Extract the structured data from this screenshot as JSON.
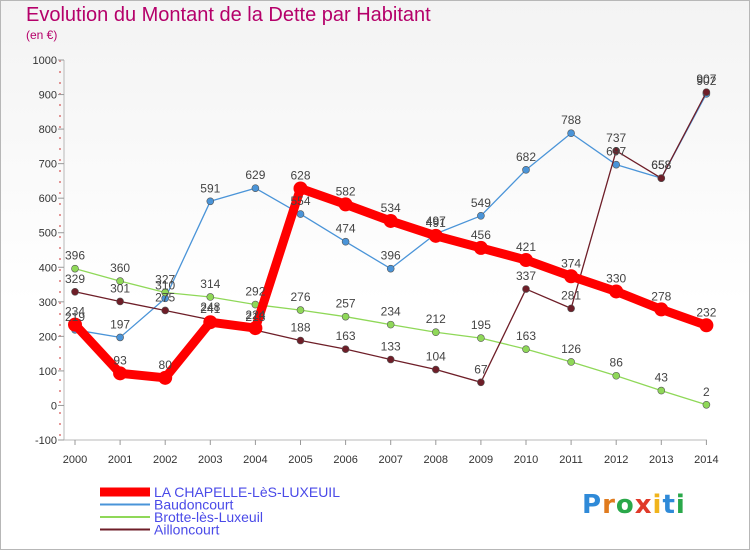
{
  "title": "Evolution du Montant de la Dette par Habitant",
  "subtitle": "(en €)",
  "logo": {
    "letters": [
      "P",
      "r",
      "o",
      "x",
      "i",
      "t",
      "i"
    ],
    "colors": [
      "#2f8ad8",
      "#e07b1e",
      "#2aa84a",
      "#e03a2a",
      "#f0b41c",
      "#2f8ad8",
      "#2aa84a"
    ]
  },
  "chart_data": {
    "type": "line",
    "title": "Evolution du Montant de la Dette par Habitant",
    "ylabel": "(en €)",
    "x": [
      "2000",
      "2001",
      "2002",
      "2003",
      "2004",
      "2005",
      "2006",
      "2007",
      "2008",
      "2009",
      "2010",
      "2011",
      "2012",
      "2013",
      "2014"
    ],
    "ylim": [
      -100,
      1000
    ],
    "yticks": [
      "-100",
      "0",
      "100",
      "200",
      "300",
      "400",
      "500",
      "600",
      "700",
      "800",
      "900",
      "1000"
    ],
    "grid": false,
    "legend_position": "bottom-left",
    "series": [
      {
        "name": "LA CHAPELLE-LèS-LUXEUIL",
        "color": "#ff0000",
        "width": 9,
        "marker": 7,
        "values": [
          234,
          93,
          80,
          241,
          224,
          628,
          582,
          534,
          491,
          456,
          421,
          374,
          330,
          278,
          232
        ],
        "labels": [
          "234",
          "93",
          "80",
          "241",
          "224",
          "628",
          "582",
          "534",
          "491",
          "456",
          "421",
          "374",
          "330",
          "278",
          "232"
        ]
      },
      {
        "name": "Baudoncourt",
        "color": "#4a94d8",
        "width": 1.3,
        "marker": 3.5,
        "values": [
          219,
          197,
          310,
          591,
          629,
          554,
          474,
          396,
          497,
          549,
          682,
          788,
          697,
          658,
          902
        ],
        "labels": [
          "219",
          "197",
          "310",
          "591",
          "629",
          "554",
          "474",
          "396",
          "497",
          "549",
          "682",
          "788",
          "697",
          "658",
          "902"
        ]
      },
      {
        "name": "Brotte-lès-Luxeuil",
        "color": "#8fd858",
        "width": 1.3,
        "marker": 3.5,
        "values": [
          396,
          360,
          327,
          314,
          292,
          276,
          257,
          234,
          212,
          195,
          163,
          126,
          86,
          43,
          2
        ],
        "labels": [
          "396",
          "360",
          "327",
          "314",
          "292",
          "276",
          "257",
          "234",
          "212",
          "195",
          "163",
          "126",
          "86",
          "43",
          "2"
        ]
      },
      {
        "name": "Ailloncourt",
        "color": "#6e1e28",
        "width": 1.3,
        "marker": 3.5,
        "values": [
          329,
          301,
          275,
          248,
          218,
          188,
          163,
          133,
          104,
          67,
          337,
          281,
          737,
          658,
          907
        ],
        "labels": [
          "329",
          "301",
          "275",
          "248",
          "218",
          "188",
          "163",
          "133",
          "104",
          "67",
          "337",
          "281",
          "737",
          "658",
          "907"
        ]
      }
    ]
  }
}
